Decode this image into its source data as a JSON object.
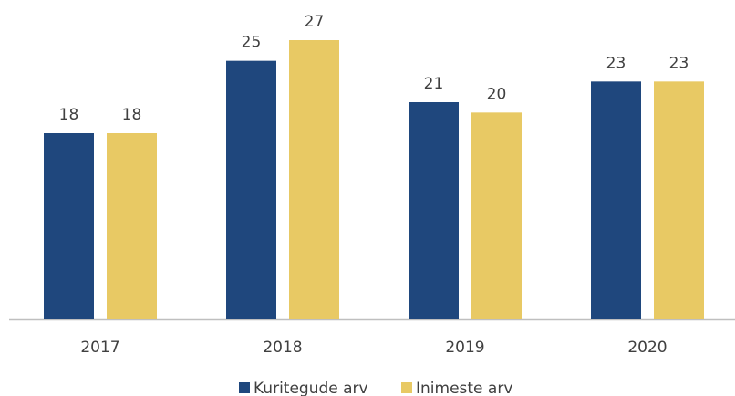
{
  "chart_data": {
    "type": "bar",
    "categories": [
      "2017",
      "2018",
      "2019",
      "2020"
    ],
    "series": [
      {
        "name": "Kuritegude arv",
        "color": "#1f477d",
        "values": [
          18,
          25,
          21,
          23
        ]
      },
      {
        "name": "Inimeste arv",
        "color": "#e8c964",
        "values": [
          18,
          27,
          20,
          23
        ]
      }
    ],
    "ylim": [
      0,
      30
    ],
    "legend": "bottom"
  }
}
